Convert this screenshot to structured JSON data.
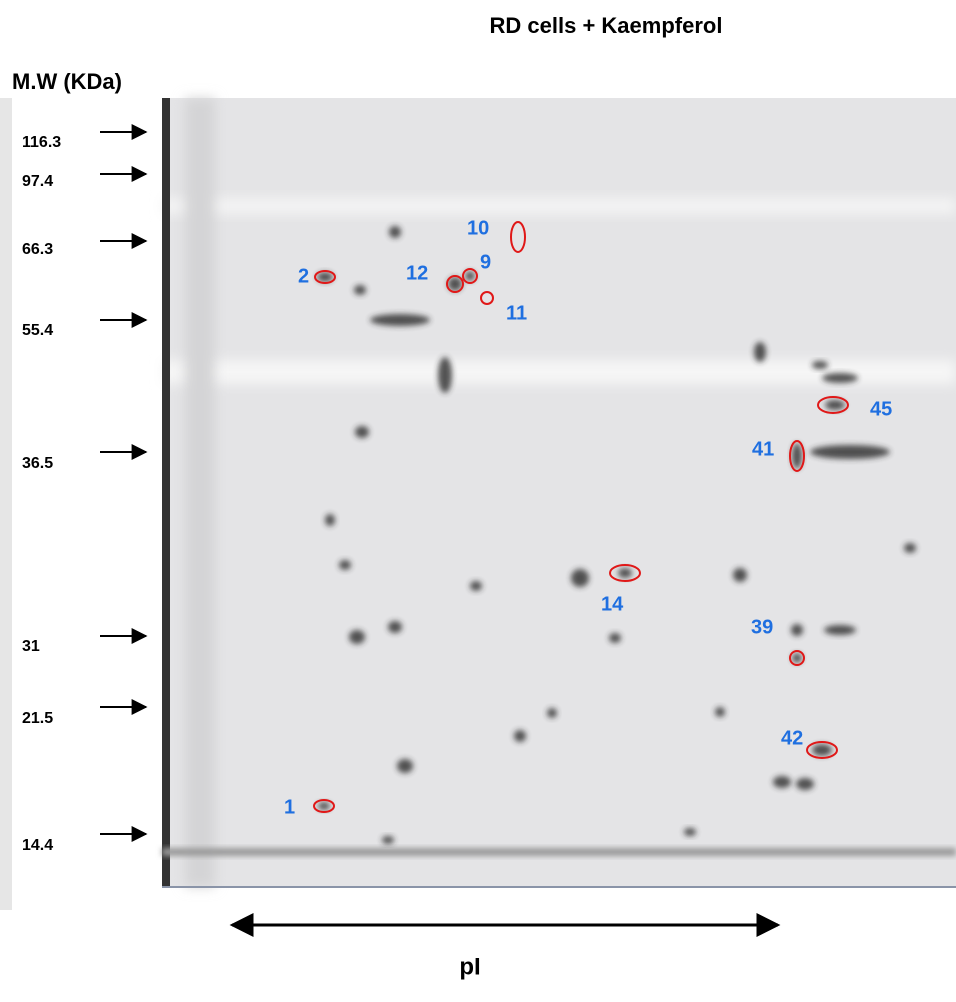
{
  "header": {
    "title": "RD cells + Kaempferol"
  },
  "y_axis_label": "M.W (KDa)",
  "markers": [
    "116.3",
    "97.4",
    "66.3",
    "55.4",
    "36.5",
    "31",
    "21.5",
    "14.4"
  ],
  "spots": [
    "10",
    "9",
    "12",
    "2",
    "11",
    "45",
    "41",
    "14",
    "39",
    "42",
    "1"
  ],
  "x_axis_label": "pI"
}
